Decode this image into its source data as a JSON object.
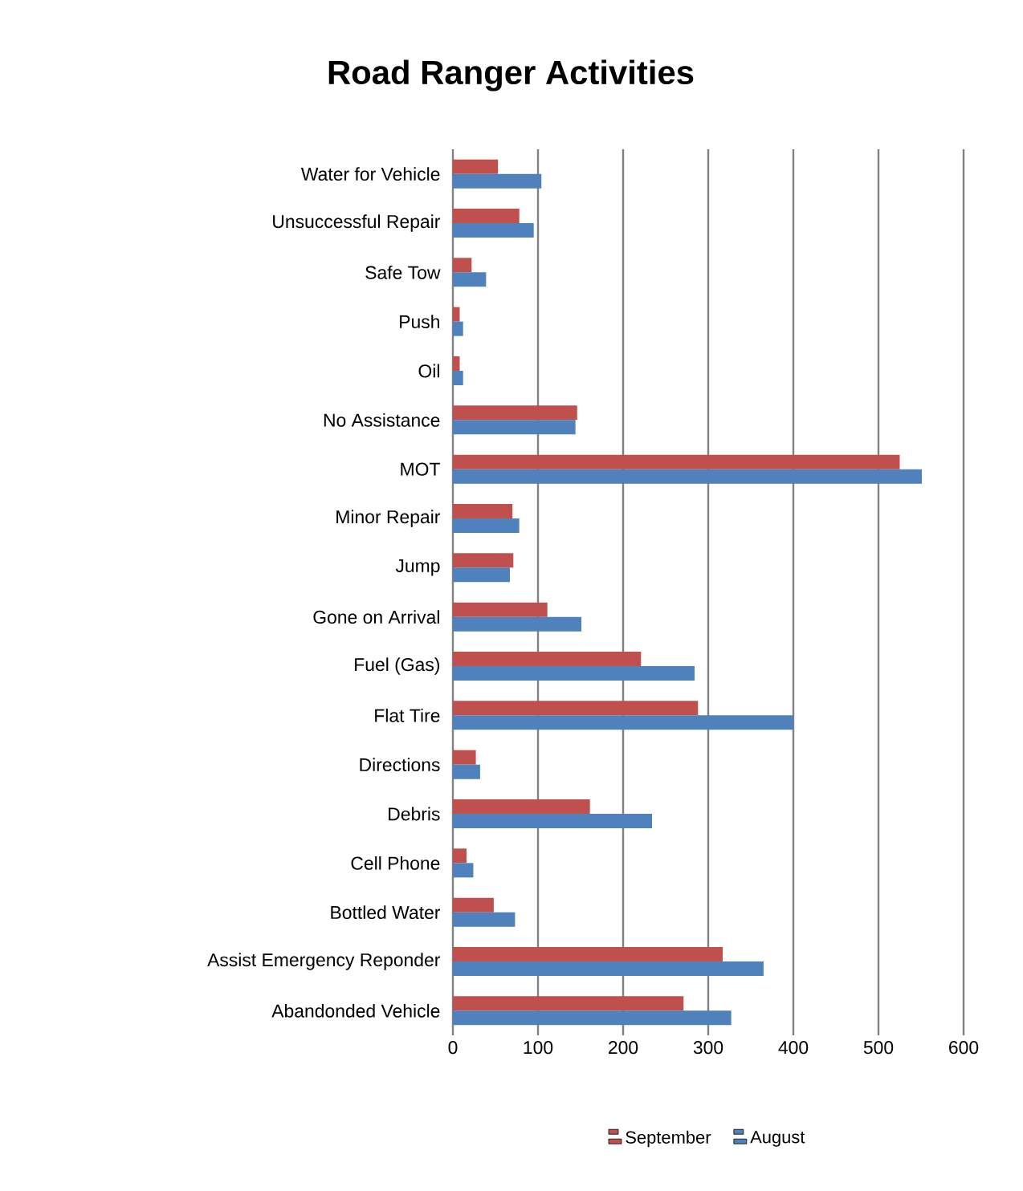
{
  "chart_data": {
    "type": "bar",
    "orientation": "horizontal",
    "title": "Road Ranger Activities",
    "categories": [
      "Water for Vehicle",
      "Unsuccessful Repair",
      "Safe Tow",
      "Push",
      "Oil",
      "No Assistance",
      "MOT",
      "Minor Repair",
      "Jump",
      "Gone on Arrival",
      "Fuel (Gas)",
      "Flat Tire",
      "Directions",
      "Debris",
      "Cell Phone",
      "Bottled Water",
      "Assist Emergency Reponder",
      "Abandonded Vehicle"
    ],
    "series": [
      {
        "name": "September",
        "color": "#c0504d",
        "values": [
          53,
          78,
          22,
          8,
          8,
          146,
          525,
          70,
          71,
          111,
          221,
          288,
          27,
          161,
          16,
          48,
          317,
          271
        ]
      },
      {
        "name": "August",
        "color": "#4f81bd",
        "values": [
          104,
          95,
          39,
          12,
          12,
          144,
          551,
          78,
          67,
          151,
          284,
          400,
          32,
          234,
          24,
          73,
          365,
          327
        ]
      }
    ],
    "xlim": [
      0,
      600
    ],
    "xticks": [
      0,
      100,
      200,
      300,
      400,
      500,
      600
    ],
    "grid": "x",
    "legend": "bottom"
  }
}
